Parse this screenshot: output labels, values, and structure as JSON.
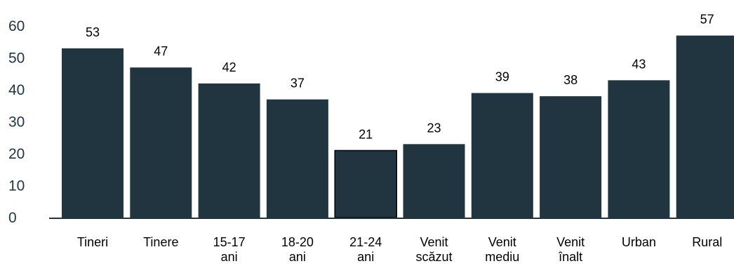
{
  "chart_data": {
    "type": "bar",
    "categories": [
      "Tineri",
      "Tinere",
      "15-17 ani",
      "18-20 ani",
      "21-24 ani",
      "Venit scăzut",
      "Venit mediu",
      "Venit înalt",
      "Urban",
      "Rural"
    ],
    "category_lines": [
      [
        "Tineri"
      ],
      [
        "Tinere"
      ],
      [
        "15-17",
        "ani"
      ],
      [
        "18-20",
        "ani"
      ],
      [
        "21-24",
        "ani"
      ],
      [
        "Venit",
        "scăzut"
      ],
      [
        "Venit",
        "mediu"
      ],
      [
        "Venit",
        "înalt"
      ],
      [
        "Urban"
      ],
      [
        "Rural"
      ]
    ],
    "values": [
      53,
      47,
      42,
      37,
      21,
      23,
      39,
      38,
      43,
      57
    ],
    "data_labels": [
      "53",
      "47",
      "42",
      "37",
      "21",
      "23",
      "39",
      "38",
      "43",
      "57"
    ],
    "y_ticks": [
      "0",
      "10",
      "20",
      "30",
      "40",
      "50",
      "60"
    ],
    "ylim": [
      0,
      60
    ],
    "grid": false,
    "legend": "none",
    "colors": {
      "bar": "#203540",
      "axis_text": "#1f3540",
      "axis_line": "#203540"
    }
  }
}
